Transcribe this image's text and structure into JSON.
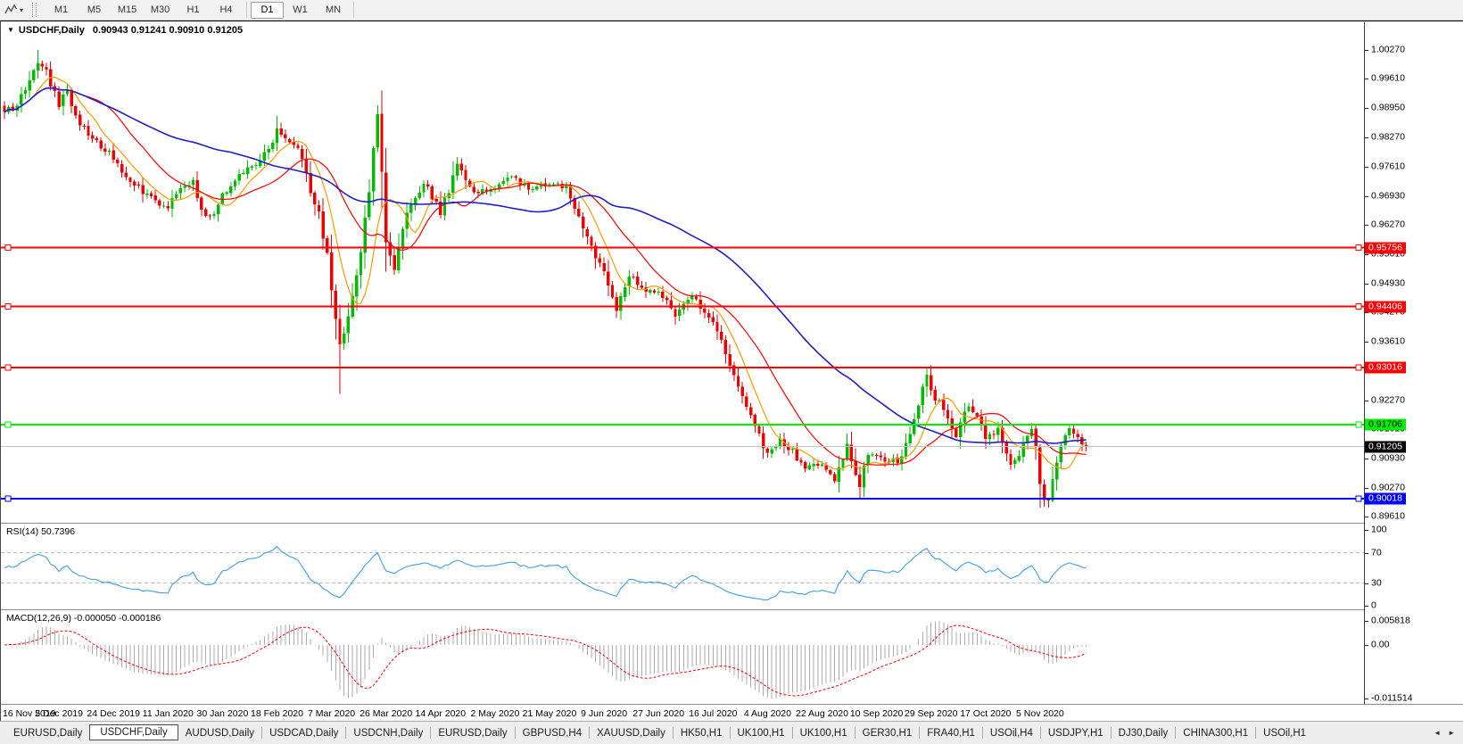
{
  "toolbar": {
    "timeframes": [
      "M1",
      "M5",
      "M15",
      "M30",
      "H1",
      "H4",
      "D1",
      "W1",
      "MN"
    ],
    "active_timeframe": "D1"
  },
  "chart": {
    "title": {
      "symbol": "USDCHF,Daily",
      "ohlc": "0.90943 0.91241 0.90910 0.91205"
    },
    "price_axis_ticks": [
      "1.00270",
      "0.99610",
      "0.98950",
      "0.98270",
      "0.97610",
      "0.96930",
      "0.96270",
      "0.95610",
      "0.94930",
      "0.94270",
      "0.93610",
      "0.92950",
      "0.92270",
      "0.91610",
      "0.90930",
      "0.90270",
      "0.89610"
    ],
    "hlines": [
      {
        "label": "0.95756",
        "value": 0.95756,
        "color": "#ff0000",
        "text_color": "#ffffff"
      },
      {
        "label": "0.94406",
        "value": 0.94406,
        "color": "#ff0000",
        "text_color": "#ffffff"
      },
      {
        "label": "0.93016",
        "value": 0.93016,
        "color": "#ff0000",
        "text_color": "#ffffff"
      },
      {
        "label": "0.91706",
        "value": 0.91706,
        "color": "#00ee00",
        "text_color": "#000000"
      },
      {
        "label": "0.90018",
        "value": 0.90018,
        "color": "#0000ff",
        "text_color": "#ffffff"
      }
    ],
    "current_price": {
      "label": "0.91205",
      "value": 0.91205,
      "line_color": "#c0c0c0",
      "badge_bg": "#000000",
      "badge_text": "#ffffff"
    },
    "candles": {
      "up_color": "#00bb00",
      "down_color": "#ee0000",
      "bars": 259,
      "anchors": [
        [
          0,
          0.9885
        ],
        [
          3,
          0.99
        ],
        [
          6,
          0.9958
        ],
        [
          8,
          1.0005
        ],
        [
          10,
          0.9978
        ],
        [
          13,
          0.9906
        ],
        [
          15,
          0.9928
        ],
        [
          18,
          0.9862
        ],
        [
          22,
          0.9818
        ],
        [
          26,
          0.9782
        ],
        [
          30,
          0.9726
        ],
        [
          34,
          0.9698
        ],
        [
          39,
          0.9664
        ],
        [
          42,
          0.9713
        ],
        [
          45,
          0.9722
        ],
        [
          48,
          0.964
        ],
        [
          50,
          0.9656
        ],
        [
          52,
          0.9694
        ],
        [
          56,
          0.9738
        ],
        [
          60,
          0.9768
        ],
        [
          63,
          0.98
        ],
        [
          65,
          0.9843
        ],
        [
          67,
          0.983
        ],
        [
          69,
          0.9812
        ],
        [
          71,
          0.978
        ],
        [
          73,
          0.97
        ],
        [
          75,
          0.9648
        ],
        [
          77,
          0.956
        ],
        [
          79,
          0.9425
        ],
        [
          80,
          0.9342
        ],
        [
          81,
          0.9372
        ],
        [
          83,
          0.948
        ],
        [
          85,
          0.9562
        ],
        [
          87,
          0.97
        ],
        [
          88,
          0.9806
        ],
        [
          89,
          0.9868
        ],
        [
          90,
          0.9758
        ],
        [
          91,
          0.96
        ],
        [
          93,
          0.953
        ],
        [
          96,
          0.966
        ],
        [
          100,
          0.9726
        ],
        [
          104,
          0.9656
        ],
        [
          108,
          0.976
        ],
        [
          112,
          0.9696
        ],
        [
          117,
          0.9716
        ],
        [
          121,
          0.9744
        ],
        [
          125,
          0.9706
        ],
        [
          130,
          0.9724
        ],
        [
          134,
          0.9712
        ],
        [
          138,
          0.9618
        ],
        [
          143,
          0.9522
        ],
        [
          146,
          0.9428
        ],
        [
          149,
          0.951
        ],
        [
          152,
          0.9482
        ],
        [
          156,
          0.9476
        ],
        [
          160,
          0.9418
        ],
        [
          164,
          0.9464
        ],
        [
          169,
          0.9406
        ],
        [
          172,
          0.9338
        ],
        [
          175,
          0.9252
        ],
        [
          178,
          0.9188
        ],
        [
          182,
          0.9098
        ],
        [
          185,
          0.9136
        ],
        [
          188,
          0.9112
        ],
        [
          191,
          0.9068
        ],
        [
          195,
          0.9088
        ],
        [
          198,
          0.9048
        ],
        [
          201,
          0.9126
        ],
        [
          204,
          0.9028
        ],
        [
          206,
          0.9106
        ],
        [
          208,
          0.9096
        ],
        [
          211,
          0.9086
        ],
        [
          214,
          0.9092
        ],
        [
          217,
          0.9176
        ],
        [
          219,
          0.9262
        ],
        [
          220,
          0.9292
        ],
        [
          221,
          0.9248
        ],
        [
          224,
          0.9208
        ],
        [
          227,
          0.9148
        ],
        [
          230,
          0.9216
        ],
        [
          232,
          0.9182
        ],
        [
          234,
          0.9148
        ],
        [
          237,
          0.9158
        ],
        [
          240,
          0.9078
        ],
        [
          243,
          0.9118
        ],
        [
          245,
          0.9162
        ],
        [
          246,
          0.9108
        ],
        [
          247,
          0.9018
        ],
        [
          248,
          0.8996
        ],
        [
          249,
          0.8992
        ],
        [
          250,
          0.904
        ],
        [
          252,
          0.913
        ],
        [
          254,
          0.9164
        ],
        [
          256,
          0.914
        ],
        [
          258,
          0.91205
        ]
      ],
      "wicks": [
        [
          8,
          "h",
          1.0027
        ],
        [
          80,
          "l",
          0.9241
        ],
        [
          89,
          "h",
          0.9901
        ],
        [
          220,
          "h",
          0.9302
        ],
        [
          248,
          "l",
          0.8983
        ],
        [
          249,
          "l",
          0.8981
        ]
      ]
    },
    "ma_lines": [
      {
        "name": "ma-fast-orange",
        "color": "#ff9900",
        "period": 8,
        "width": 1.2
      },
      {
        "name": "ma-mid-red",
        "color": "#ff0000",
        "period": 20,
        "width": 1.2
      },
      {
        "name": "ma-slow-blue",
        "color": "#2020c0",
        "period": 55,
        "width": 1.6
      }
    ]
  },
  "rsi": {
    "label": "RSI(14) 50.7396",
    "value": "50.7396",
    "axis_labels": [
      "100",
      "70",
      "30",
      "0"
    ],
    "levels": [
      70,
      30
    ],
    "line_color": "#3e9ee8"
  },
  "macd": {
    "label": "MACD(12,26,9) -0.000050 -0.000186",
    "values": "-0.000050 -0.000186",
    "axis_labels": [
      "0.005818",
      "0.00",
      "-0.011514"
    ],
    "bar_color": "#ababab",
    "signal_color": "#ff0000"
  },
  "date_axis": [
    "16 Nov 2019",
    "5 Dec 2019",
    "24 Dec 2019",
    "11 Jan 2020",
    "30 Jan 2020",
    "18 Feb 2020",
    "7 Mar 2020",
    "26 Mar 2020",
    "14 Apr 2020",
    "2 May 2020",
    "21 May 2020",
    "9 Jun 2020",
    "27 Jun 2020",
    "16 Jul 2020",
    "4 Aug 2020",
    "22 Aug 2020",
    "10 Sep 2020",
    "29 Sep 2020",
    "17 Oct 2020",
    "5 Nov 2020"
  ],
  "tabs": {
    "items": [
      "EURUSD,Daily",
      "USDCHF,Daily",
      "AUDUSD,Daily",
      "USDCAD,Daily",
      "USDCNH,Daily",
      "EURUSD,Daily",
      "GBPUSD,H4",
      "XAUUSD,Daily",
      "HK50,H1",
      "UK100,H1",
      "UK100,H1",
      "GER30,H1",
      "FRA40,H1",
      "USOil,H4",
      "USDJPY,H1",
      "DJ30,Daily",
      "CHINA300,H1",
      "USOil,H1"
    ],
    "active_index": 1,
    "nav_left": "◄",
    "nav_right": "►"
  }
}
